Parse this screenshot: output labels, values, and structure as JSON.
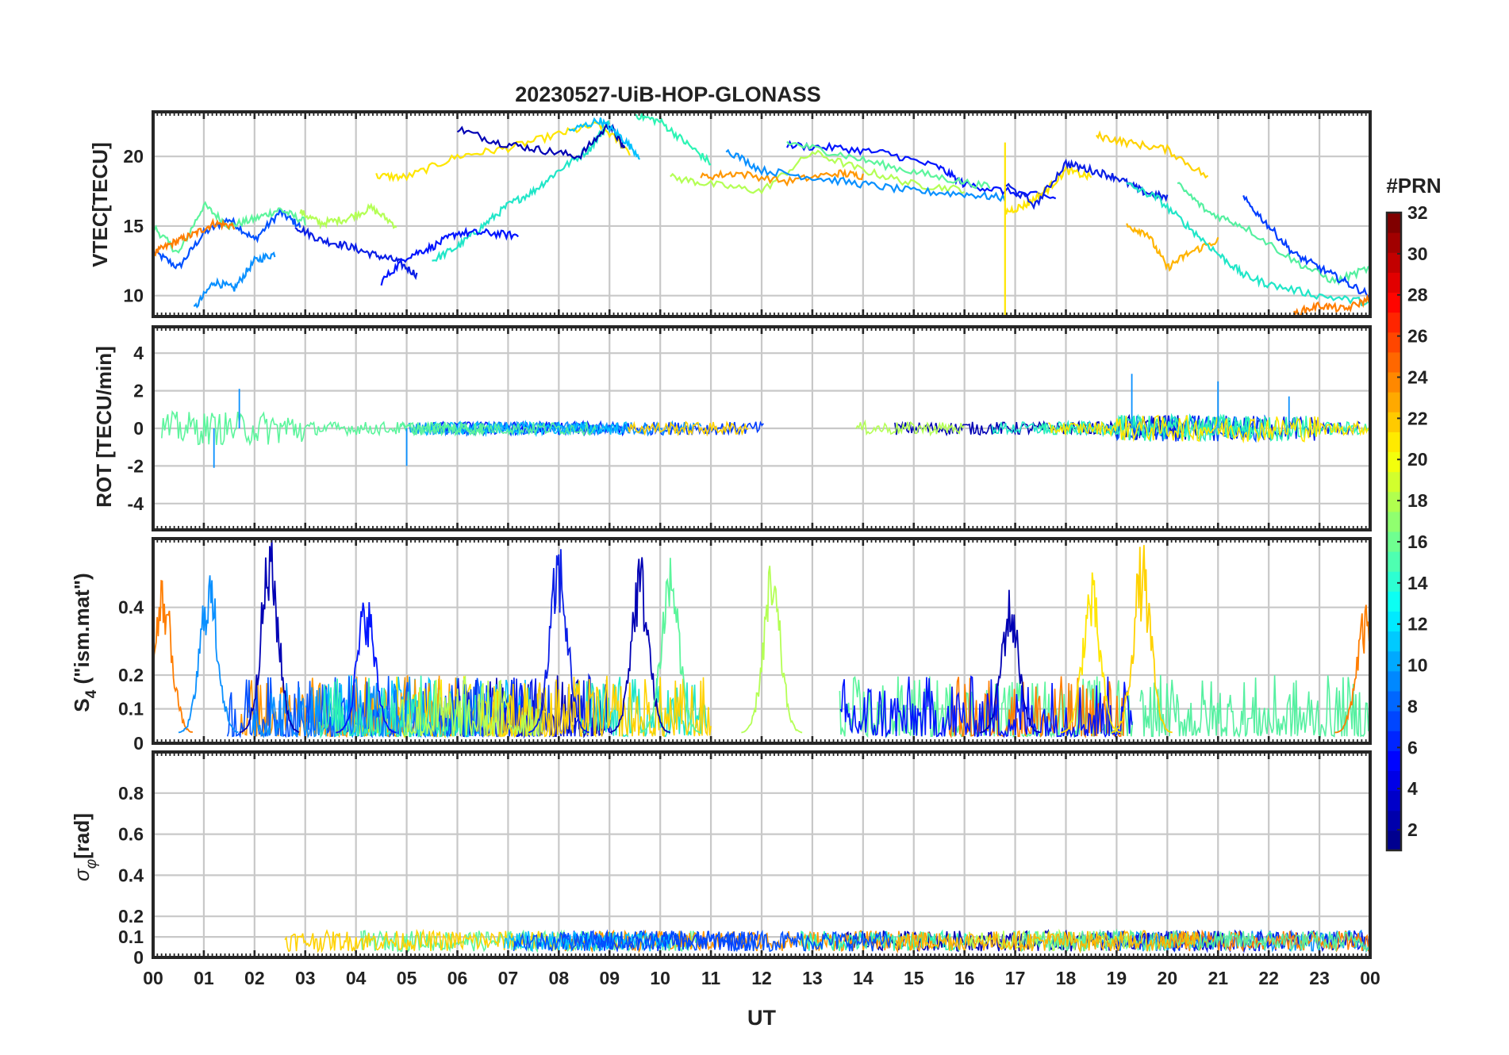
{
  "figure_title": "20230527-UiB-HOP-GLONASS",
  "colorbar": {
    "title": "#PRN",
    "ticks": [
      2,
      4,
      6,
      8,
      10,
      12,
      14,
      16,
      18,
      20,
      22,
      24,
      26,
      28,
      30,
      32
    ],
    "range": [
      1,
      32
    ]
  },
  "chart_data": [
    {
      "type": "line",
      "panel": "vtec",
      "ylabel": "VTEC[TECU]",
      "xlabel": "",
      "xlim": [
        0,
        24
      ],
      "ylim": [
        8.5,
        23.2
      ],
      "yticks": [
        10,
        15,
        20
      ],
      "grid": true,
      "series": [
        {
          "prn": 7,
          "color": "#0050ff",
          "x": [
            0,
            0.5,
            1,
            1.5,
            2,
            2.5,
            2.9
          ],
          "y": [
            13.2,
            12.0,
            14.5,
            15.5,
            14.0,
            16.0,
            15.0
          ]
        },
        {
          "prn": 15,
          "color": "#5cf59c",
          "x": [
            0,
            0.5,
            1,
            1.5,
            2,
            2.5,
            3.0
          ],
          "y": [
            15.0,
            13.0,
            16.5,
            15.0,
            15.5,
            16.2,
            15.3
          ]
        },
        {
          "prn": 24,
          "color": "#ff7d00",
          "x": [
            0,
            0.4,
            0.8,
            1.2,
            1.6
          ],
          "y": [
            13.0,
            13.8,
            14.4,
            15.2,
            15.0
          ]
        },
        {
          "prn": 9,
          "color": "#0a90ff",
          "x": [
            0.8,
            1.2,
            1.6,
            2.0,
            2.4
          ],
          "y": [
            9.0,
            11.0,
            10.5,
            12.5,
            13.0
          ]
        },
        {
          "prn": 3,
          "color": "#0a1ee6",
          "x": [
            2.8,
            3.3,
            3.8,
            4.3,
            4.8,
            5.2
          ],
          "y": [
            15.0,
            14.0,
            13.6,
            13.0,
            12.5,
            11.5
          ]
        },
        {
          "prn": 16,
          "color": "#b4ff55",
          "x": [
            2.9,
            3.3,
            3.8,
            4.3,
            4.8
          ],
          "y": [
            16.0,
            15.2,
            15.5,
            16.3,
            15.0
          ]
        },
        {
          "prn": 20,
          "color": "#ffe600",
          "x": [
            4.4,
            5.0,
            6.0,
            7.0,
            8.0,
            8.8,
            9.4
          ],
          "y": [
            18.6,
            18.5,
            20.0,
            20.6,
            21.6,
            22.3,
            20.3
          ]
        },
        {
          "prn": 12,
          "color": "#20e6c8",
          "x": [
            5.5,
            6.0,
            6.5,
            7.0,
            7.5,
            8.0,
            8.6,
            9.0
          ],
          "y": [
            12.5,
            13.5,
            15.0,
            16.5,
            17.5,
            19.0,
            20.5,
            22.5
          ]
        },
        {
          "prn": 2,
          "color": "#0000b4",
          "x": [
            6.0,
            6.8,
            7.6,
            8.4,
            9.0,
            9.3
          ],
          "y": [
            22.0,
            21.0,
            20.5,
            20.0,
            22.3,
            20.5
          ]
        },
        {
          "prn": 4,
          "color": "#0014ff",
          "x": [
            4.5,
            5.0,
            5.5,
            6.0,
            6.6,
            7.2
          ],
          "y": [
            11.0,
            12.8,
            13.5,
            14.5,
            14.5,
            14.3
          ]
        },
        {
          "prn": 13,
          "color": "#2cf4b4",
          "x": [
            9.5,
            10.0,
            10.5,
            11.0
          ],
          "y": [
            23.0,
            22.5,
            21.0,
            19.5
          ]
        },
        {
          "prn": 11,
          "color": "#00c0ff",
          "x": [
            8.2,
            8.8,
            9.2,
            9.6
          ],
          "y": [
            21.8,
            22.6,
            21.5,
            20.0
          ]
        },
        {
          "prn": 16,
          "color": "#b4ff55",
          "x": [
            10.2,
            11.0,
            12.0,
            13.0,
            14.0,
            15.0,
            16.0
          ],
          "y": [
            18.5,
            18.0,
            17.5,
            20.3,
            19.0,
            18.0,
            17.6
          ]
        },
        {
          "prn": 23,
          "color": "#ff9600",
          "x": [
            10.8,
            11.5,
            12.5,
            13.5,
            14.0
          ],
          "y": [
            18.5,
            18.8,
            18.2,
            18.8,
            18.6
          ]
        },
        {
          "prn": 9,
          "color": "#0a90ff",
          "x": [
            11.3,
            12.0,
            13.0,
            14.0,
            15.0,
            16.0,
            16.8
          ],
          "y": [
            20.5,
            19.0,
            18.5,
            18.0,
            17.5,
            17.3,
            17.0
          ]
        },
        {
          "prn": 4,
          "color": "#0014ff",
          "x": [
            12.5,
            13.5,
            14.5,
            15.5,
            16.0,
            16.8,
            17.8
          ],
          "y": [
            20.8,
            20.6,
            20.2,
            19.2,
            18.0,
            17.5,
            17.0
          ]
        },
        {
          "prn": 15,
          "color": "#5cf59c",
          "x": [
            12.5,
            13.5,
            14.5,
            15.5,
            16.5
          ],
          "y": [
            21.0,
            20.2,
            19.3,
            18.5,
            17.8
          ]
        },
        {
          "prn": 20,
          "color": "#ffe600",
          "x": [
            16.8,
            17.2,
            17.6,
            18.0,
            18.5
          ],
          "y": [
            16.0,
            16.5,
            17.5,
            19.0,
            18.5
          ]
        },
        {
          "prn": 3,
          "color": "#0a1ee6",
          "x": [
            16.8,
            17.4,
            18.0,
            18.5,
            19.0,
            19.5,
            20.0
          ],
          "y": [
            18.0,
            16.5,
            19.5,
            19.0,
            18.5,
            17.5,
            17.0
          ]
        },
        {
          "prn": 21,
          "color": "#ffd200",
          "x": [
            18.6,
            19.2,
            20.0,
            20.8
          ],
          "y": [
            21.5,
            21.0,
            20.5,
            18.5
          ]
        },
        {
          "prn": 22,
          "color": "#ffb400",
          "x": [
            19.2,
            19.6,
            20.0,
            20.4,
            21.0
          ],
          "y": [
            15.0,
            14.5,
            12.0,
            13.0,
            14.0
          ]
        },
        {
          "prn": 12,
          "color": "#20e6c8",
          "x": [
            19.2,
            19.8,
            20.4,
            21.0,
            21.5,
            22.0,
            23.0,
            24.0
          ],
          "y": [
            18.0,
            17.0,
            15.0,
            13.0,
            11.5,
            10.8,
            10.0,
            9.5
          ]
        },
        {
          "prn": 14,
          "color": "#55f0a0",
          "x": [
            20.2,
            20.8,
            21.5,
            22.5,
            23.3,
            24.0
          ],
          "y": [
            18.0,
            16.0,
            15.0,
            12.5,
            11.0,
            12.0
          ]
        },
        {
          "prn": 5,
          "color": "#003cff",
          "x": [
            21.5,
            22.0,
            22.5,
            23.0,
            23.5,
            24.0
          ],
          "y": [
            17.0,
            15.0,
            13.0,
            12.0,
            11.0,
            10.0
          ]
        },
        {
          "prn": 24,
          "color": "#ff7d00",
          "x": [
            22.5,
            23.0,
            23.5,
            24.0
          ],
          "y": [
            8.7,
            9.3,
            9.0,
            9.8
          ]
        }
      ]
    },
    {
      "type": "line",
      "panel": "rot",
      "ylabel": "ROT [TECU/min]",
      "xlabel": "",
      "xlim": [
        0,
        24
      ],
      "ylim": [
        -5.4,
        5.4
      ],
      "yticks": [
        -4,
        -2,
        0,
        2,
        4
      ],
      "grid": true,
      "series_summary": "ROT fluctuates around 0 for all PRNs; peaks near +2.2 and -2.2 at 01-02 UT, ~-2 at 05 UT, ~+3 at 19.2 UT",
      "extremes": [
        {
          "x": 1.7,
          "y": 2.1
        },
        {
          "x": 1.2,
          "y": -2.1
        },
        {
          "x": 5.0,
          "y": -2.0
        },
        {
          "x": 19.3,
          "y": 2.9
        },
        {
          "x": 21.0,
          "y": 2.5
        },
        {
          "x": 22.4,
          "y": 1.7
        }
      ]
    },
    {
      "type": "line",
      "panel": "s4",
      "ylabel": "S4 (\"ism.mat\")",
      "ylabel_main": "S",
      "ylabel_sub": "4",
      "ylabel_tail": " (\"ism.mat\")",
      "xlabel": "",
      "xlim": [
        0,
        24
      ],
      "ylim": [
        0,
        0.58
      ],
      "yticks": [
        0,
        0.1,
        0.2,
        0.4
      ],
      "ytick_labels": [
        "0",
        "0.1",
        "0.2",
        "0.4"
      ],
      "scale": "nonlinear-compressed",
      "grid": true,
      "peaks": [
        {
          "x": 0.2,
          "y": 0.47,
          "prn": 24
        },
        {
          "x": 1.1,
          "y": 0.5,
          "prn": 9
        },
        {
          "x": 2.3,
          "y": 0.58,
          "prn": 2
        },
        {
          "x": 4.2,
          "y": 0.43,
          "prn": 4
        },
        {
          "x": 8.0,
          "y": 0.56,
          "prn": 3
        },
        {
          "x": 9.6,
          "y": 0.53,
          "prn": 2
        },
        {
          "x": 10.2,
          "y": 0.54,
          "prn": 15
        },
        {
          "x": 12.2,
          "y": 0.5,
          "prn": 16
        },
        {
          "x": 16.9,
          "y": 0.43,
          "prn": 2
        },
        {
          "x": 18.5,
          "y": 0.47,
          "prn": 20
        },
        {
          "x": 19.5,
          "y": 0.55,
          "prn": 21
        },
        {
          "x": 23.9,
          "y": 0.38,
          "prn": 24
        }
      ]
    },
    {
      "type": "line",
      "panel": "sigma_phi",
      "ylabel": "σφ[rad]",
      "ylabel_main": "σ",
      "ylabel_sub": "φ",
      "ylabel_tail": "[rad]",
      "xlabel": "UT",
      "xlim": [
        0,
        24
      ],
      "ylim": [
        0,
        1.0
      ],
      "yticks": [
        0,
        0.1,
        0.2,
        0.4,
        0.6,
        0.8
      ],
      "ytick_labels": [
        "0",
        "0.1",
        "0.2",
        "0.4",
        "0.6",
        "0.8"
      ],
      "xticks": [
        0,
        1,
        2,
        3,
        4,
        5,
        6,
        7,
        8,
        9,
        10,
        11,
        12,
        13,
        14,
        15,
        16,
        17,
        18,
        19,
        20,
        21,
        22,
        23,
        24
      ],
      "xtick_labels": [
        "00",
        "01",
        "02",
        "03",
        "04",
        "05",
        "06",
        "07",
        "08",
        "09",
        "10",
        "11",
        "12",
        "13",
        "14",
        "15",
        "16",
        "17",
        "18",
        "19",
        "20",
        "21",
        "22",
        "23",
        "00"
      ],
      "grid": true,
      "typical_range": [
        0.02,
        0.17
      ]
    }
  ]
}
